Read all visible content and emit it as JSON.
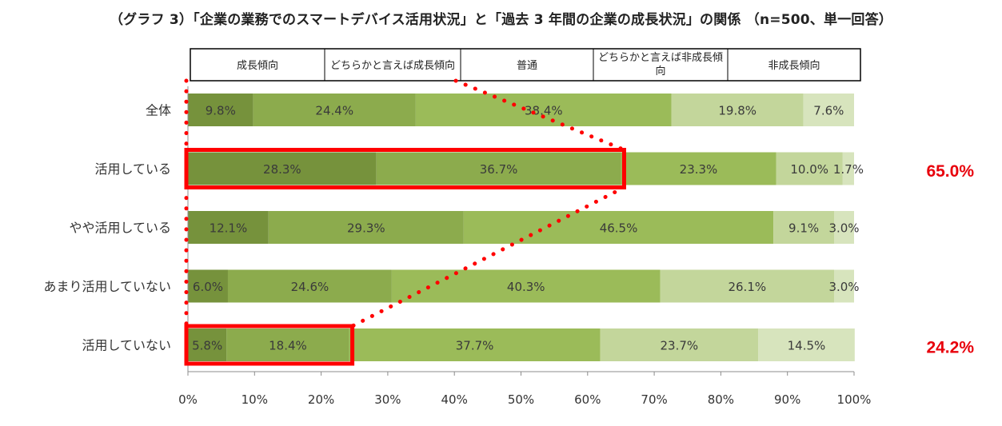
{
  "title": "（グラフ 3）「企業の業務でのスマートデバイス活用状況」と「過去 3 年間の企業の成長状況」の関係 （n=500、単一回答）",
  "chart_data": {
    "type": "bar",
    "orientation": "horizontal",
    "stacked": true,
    "percent": true,
    "categories": [
      "全体",
      "活用している",
      "やや活用している",
      "あまり活用していない",
      "活用していない"
    ],
    "series": [
      {
        "name": "成長傾向",
        "values": [
          9.8,
          28.3,
          12.1,
          6.0,
          5.8
        ],
        "labels": [
          "9.8%",
          "28.3%",
          "12.1%",
          "6.0%",
          "5.8%"
        ],
        "color": "#76923c"
      },
      {
        "name": "どちらかと言えば成長傾向",
        "values": [
          24.4,
          36.7,
          29.3,
          24.6,
          18.4
        ],
        "labels": [
          "24.4%",
          "36.7%",
          "29.3%",
          "24.6%",
          "18.4%"
        ],
        "color": "#8cab4d"
      },
      {
        "name": "普通",
        "values": [
          38.4,
          23.3,
          46.5,
          40.3,
          37.7
        ],
        "labels": [
          "38.4%",
          "23.3%",
          "46.5%",
          "40.3%",
          "37.7%"
        ],
        "color": "#9bbb59"
      },
      {
        "name": "どちらかと言えば非成長傾向",
        "values": [
          19.8,
          10.0,
          9.1,
          26.1,
          23.7
        ],
        "labels": [
          "19.8%",
          "10.0%",
          "9.1%",
          "26.1%",
          "23.7%"
        ],
        "color": "#c3d69b"
      },
      {
        "name": "非成長傾向",
        "values": [
          7.6,
          1.7,
          3.0,
          3.0,
          14.5
        ],
        "labels": [
          "7.6%",
          "1.7%",
          "3.0%",
          "3.0%",
          "14.5%"
        ],
        "color": "#d7e4bd"
      }
    ],
    "xlim": [
      0,
      100
    ],
    "xticks": [
      "0%",
      "10%",
      "20%",
      "30%",
      "40%",
      "50%",
      "60%",
      "70%",
      "80%",
      "90%",
      "100%"
    ],
    "legend_position": "top",
    "highlights": [
      {
        "category": "活用している",
        "sum_series": 2,
        "label": "65.0%"
      },
      {
        "category": "活用していない",
        "sum_series": 2,
        "label": "24.2%"
      }
    ],
    "highlight_color": "#ff0000"
  }
}
